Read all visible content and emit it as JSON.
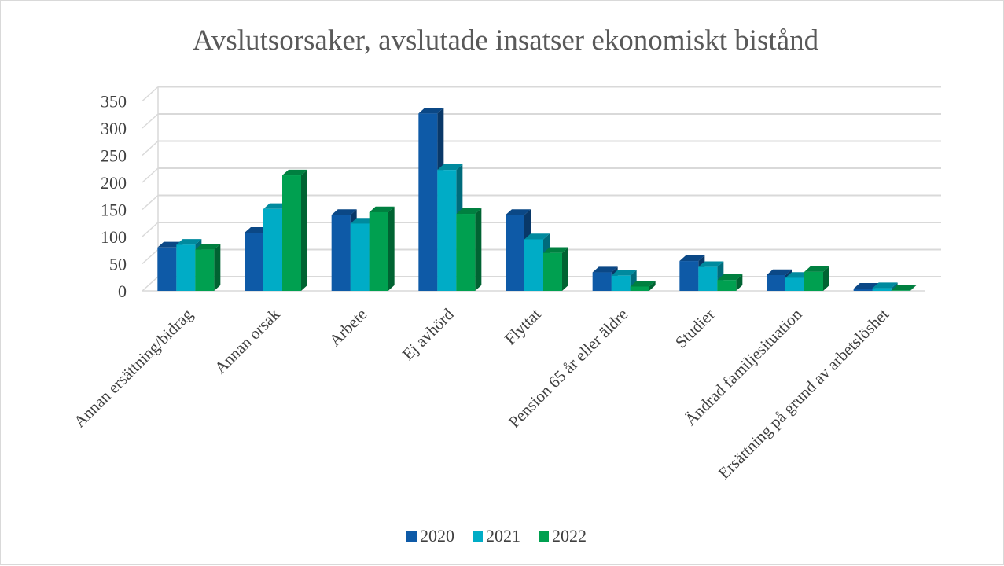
{
  "chart_data": {
    "type": "bar",
    "title": "Avslutsorsaker, avslutade insatser ekonomiskt bistånd",
    "categories": [
      "Annan ersättning/bidrag",
      "Annan orsak",
      "Arbete",
      "Ej avhörd",
      "Flyttat",
      "Pension 65 år eller äldre",
      "Studier",
      "Ändrad familjesituation",
      "Ersättning på grund av arbetslöshet"
    ],
    "series": [
      {
        "name": "2020",
        "color": "#0e5aa7",
        "values": [
          80,
          107,
          140,
          327,
          140,
          34,
          55,
          29,
          4
        ]
      },
      {
        "name": "2021",
        "color": "#00acc6",
        "values": [
          85,
          151,
          124,
          223,
          95,
          28,
          44,
          24,
          5
        ]
      },
      {
        "name": "2022",
        "color": "#00a050",
        "values": [
          76,
          213,
          145,
          142,
          70,
          8,
          20,
          35,
          1
        ]
      }
    ],
    "ylim": [
      0,
      350
    ],
    "yticks": [
      "0",
      "50",
      "100",
      "150",
      "200",
      "250",
      "300",
      "350"
    ],
    "grid": true,
    "legend": "bottom",
    "view": "3d-clustered-column"
  }
}
